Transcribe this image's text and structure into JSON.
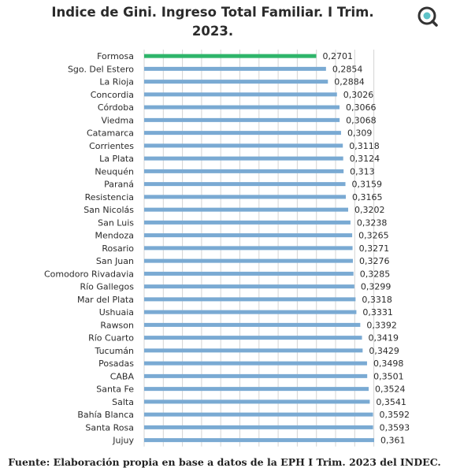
{
  "chart_data": {
    "type": "bar",
    "orientation": "horizontal",
    "title": "Indice de Gini. Ingreso Total Familiar. I Trim. 2023.",
    "title_lines": [
      "Indice de Gini. Ingreso Total Familiar. I Trim.",
      "2023."
    ],
    "categories": [
      "Formosa",
      "Sgo. Del Estero",
      "La Rioja",
      "Concordia",
      "Córdoba",
      "Viedma",
      "Catamarca",
      "Corrientes",
      "La Plata",
      "Neuquén",
      "Paraná",
      "Resistencia",
      "San Nicolás",
      "San Luis",
      "Mendoza",
      "Rosario",
      "San Juan",
      "Comodoro Rivadavia",
      "Río Gallegos",
      "Mar del Plata",
      "Ushuaia",
      "Rawson",
      "Río Cuarto",
      "Tucumán",
      "Posadas",
      "CABA",
      "Santa Fe",
      "Salta",
      "Bahía Blanca",
      "Santa Rosa",
      "Jujuy"
    ],
    "values": [
      0.2701,
      0.2854,
      0.2884,
      0.3026,
      0.3066,
      0.3068,
      0.309,
      0.3118,
      0.3124,
      0.313,
      0.3159,
      0.3165,
      0.3202,
      0.3238,
      0.3265,
      0.3271,
      0.3276,
      0.3285,
      0.3299,
      0.3318,
      0.3331,
      0.3392,
      0.3419,
      0.3429,
      0.3498,
      0.3501,
      0.3524,
      0.3541,
      0.3592,
      0.3593,
      0.361
    ],
    "value_labels": [
      "0,2701",
      "0,2854",
      "0,2884",
      "0,3026",
      "0,3066",
      "0,3068",
      "0,309",
      "0,3118",
      "0,3124",
      "0,313",
      "0,3159",
      "0,3165",
      "0,3202",
      "0,3238",
      "0,3265",
      "0,3271",
      "0,3276",
      "0,3285",
      "0,3299",
      "0,3318",
      "0,3331",
      "0,3392",
      "0,3419",
      "0,3429",
      "0,3498",
      "0,3501",
      "0,3524",
      "0,3541",
      "0,3592",
      "0,3593",
      "0,361"
    ],
    "highlight_index": 0,
    "colors": {
      "bar": "#7aaad3",
      "highlight": "#2eb56a",
      "grid": "#d4d4d4"
    },
    "xlim": [
      0,
      0.361
    ],
    "grid": true,
    "legend": "none",
    "source": "Fuente: Elaboración propia en base a datos de la EPH I Trim. 2023 del INDEC."
  },
  "logo_icon": "magnifier-logo-icon"
}
